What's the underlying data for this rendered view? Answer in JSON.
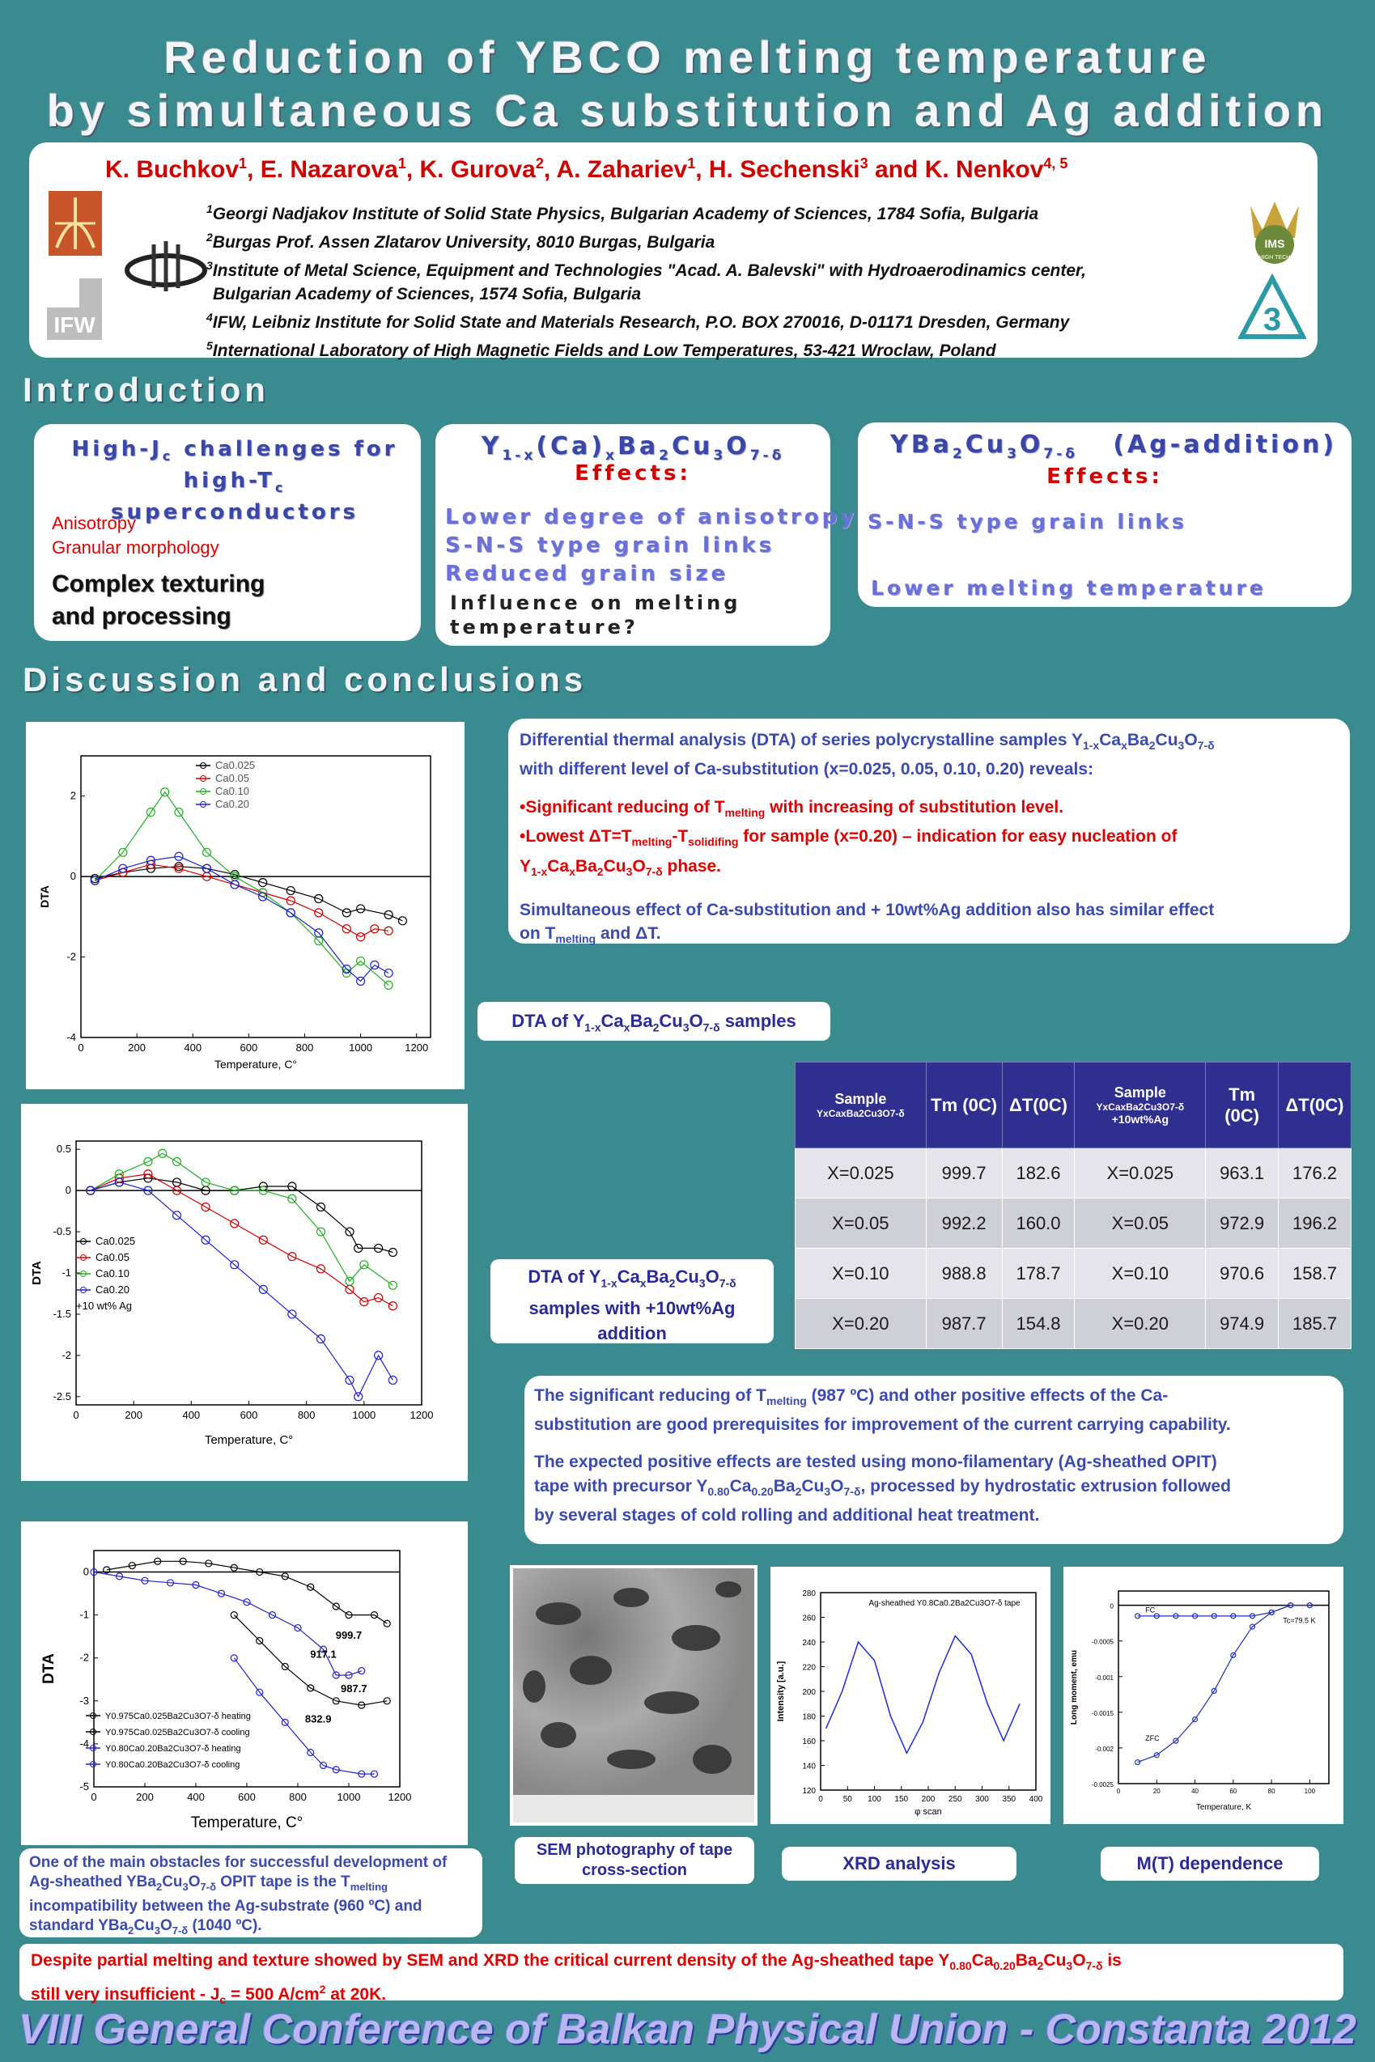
{
  "title": {
    "line1": "Reduction of YBCO melting temperature",
    "line2": "by simultaneous Ca substitution and Ag addition"
  },
  "authors": [
    {
      "name": "K. Buchkov",
      "sup": "1"
    },
    {
      "name": "E. Nazarova",
      "sup": "1"
    },
    {
      "name": "K. Gurova",
      "sup": "2"
    },
    {
      "name": "A. Zahariev",
      "sup": "1"
    },
    {
      "name": "H. Sechenski",
      "sup": "3"
    },
    {
      "name": "K. Nenkov",
      "sup": "4, 5"
    }
  ],
  "authors_and": "and",
  "affiliations": [
    {
      "sup": "1",
      "text": "Georgi Nadjakov Institute of Solid State Physics, Bulgarian Academy of Sciences, 1784 Sofia, Bulgaria"
    },
    {
      "sup": "2",
      "text": "Burgas Prof. Assen Zlatarov University, 8010 Burgas, Bulgaria"
    },
    {
      "sup": "3",
      "text": "Institute of Metal Science, Equipment and Technologies \"Acad. A. Balevski\" with Hydroaerodinamics center,"
    },
    {
      "sup": "",
      "text": "Bulgarian Academy of Sciences, 1574 Sofia, Bulgaria"
    },
    {
      "sup": "4",
      "text": "IFW, Leibniz Institute for Solid State and Materials Research, P.O. BOX 270016, D-01171 Dresden, Germany"
    },
    {
      "sup": "5",
      "text": "International Laboratory of High Magnetic Fields and Low Temperatures, 53-421 Wroclaw, Poland"
    }
  ],
  "logos": {
    "ifw": "IFW",
    "ims": "IMS",
    "ims_sub": "HIGH TECH"
  },
  "sections": {
    "intro": "Introduction",
    "discussion": "Discussion and conclusions"
  },
  "intro_box1": {
    "h1": "High-J",
    "h1_sub": "c",
    "h1_rest": " challenges for",
    "h2": "high-T",
    "h2_sub": "c",
    "h2_rest": " superconductors",
    "red1": "Anisotropy",
    "red2": "Granular morphology",
    "big1": "Complex texturing",
    "big2": "and processing"
  },
  "intro_box2": {
    "h_formula": "Y1-x(Ca)xBa2Cu3O7-δ",
    "h_effects": "Effects:",
    "items": [
      "Lower degree of anisotropy",
      "S-N-S type grain links",
      "Reduced grain size"
    ],
    "dark1": "Influence on melting",
    "dark2": "temperature?"
  },
  "intro_box3": {
    "h_formula": "YBa2Cu3O7-δ",
    "h_add": "(Ag-addition)",
    "h_effects": "Effects:",
    "items": [
      "S-N-S type grain links",
      "Lower melting temperature"
    ]
  },
  "dta_text": {
    "p1a": "Differential thermal analysis (DTA) of series polycrystalline samples Y",
    "p1b": "with different level of Ca-substitution (x=0.025, 0.05, 0.10, 0.20) reveals:",
    "r1": "•Significant reducing of T",
    "r1b": " with increasing of substitution level.",
    "r2": "•Lowest  ΔT=T",
    "r2b": " for sample (x=0.20) – indication for easy nucleation of",
    "r3b": " phase.",
    "p2": "Simultaneous effect of Ca-substitution and + 10wt%Ag addition also has similar effect",
    "p2b": "on T",
    "p2c": " and ΔT.",
    "sub_melting": "melting",
    "sub_solid": "solidifing",
    "formula": "Y1-xCaxBa2Cu3O7-δ"
  },
  "cap1": {
    "pre": "DTA of ",
    "post": " samples"
  },
  "cap2": {
    "l1_pre": "DTA of ",
    "l2": "samples with +10wt%Ag",
    "l3": "addition"
  },
  "table": {
    "headers": [
      "Sample",
      "Tm (0C)",
      "ΔT(0C)",
      "Sample",
      "Tm (0C)",
      "ΔT(0C)"
    ],
    "h1_sub": "YxCaxBa2Cu3O7-δ",
    "h4_sub": "YxCaxBa2Cu3O7-δ",
    "h4_sub2": "+10wt%Ag",
    "rows": [
      [
        "X=0.025",
        "999.7",
        "182.6",
        "X=0.025",
        "963.1",
        "176.2"
      ],
      [
        "X=0.05",
        "992.2",
        "160.0",
        "X=0.05",
        "972.9",
        "196.2"
      ],
      [
        "X=0.10",
        "988.8",
        "178.7",
        "X=0.10",
        "970.6",
        "158.7"
      ],
      [
        "X=0.20",
        "987.7",
        "154.8",
        "X=0.20",
        "974.9",
        "185.7"
      ]
    ]
  },
  "text2": {
    "a": "The significant reducing of T",
    "a_sub": "melting",
    "a2": " (987 ºC) and other positive effects of the Ca-",
    "b": "substitution are good prerequisites for improvement of the current carrying capability.",
    "c": "The expected positive effects are tested using mono-filamentary (Ag-sheathed OPIT)",
    "d": "tape with precursor Y",
    "d2": "Ca",
    "d3": "Ba",
    "d4": "Cu",
    "d5": "O",
    "d6": ", processed by hydrostatic extrusion followed",
    "e": "by several stages of cold rolling and additional heat treatment."
  },
  "obstacles": {
    "l1": "One of the main obstacles for successful development of",
    "l2a": "Ag-sheathed YBa",
    "l2b": " OPIT tape is the T",
    "l3": "incompatibility between the Ag-substrate (960 ºC) and",
    "l4": "standard YBa",
    "l4b": " (1040 ºC)."
  },
  "caps_bottom": {
    "sem1": "SEM photography of tape",
    "sem2": "cross-section",
    "xrd": "XRD analysis",
    "mt": "M(T) dependence"
  },
  "conclusion": {
    "a": "Despite partial melting and texture showed by SEM and XRD the critical current density of the Ag-sheathed tape Y",
    "b": "still very insufficient - J",
    "b2": " = 500 A/cm",
    "b3": " at 20K.",
    "is": " is"
  },
  "footer": "VIII General Conference of Balkan Physical Union - Constanta 2012",
  "chart_data": [
    {
      "type": "line",
      "xlabel": "Temperature, C°",
      "ylabel": "DTA",
      "xlim": [
        0,
        1250
      ],
      "ylim": [
        -4,
        3
      ],
      "x_ticks": [
        0,
        200,
        400,
        600,
        800,
        1000,
        1200
      ],
      "y_ticks": [
        -4,
        -2,
        0,
        2
      ],
      "legend_position": "top-right",
      "series": [
        {
          "name": "Ca0.025",
          "color": "#000000",
          "x": [
            50,
            150,
            250,
            350,
            450,
            550,
            650,
            750,
            850,
            950,
            1000,
            1100,
            1150
          ],
          "y": [
            -0.05,
            0.1,
            0.2,
            0.25,
            0.2,
            0.05,
            -0.15,
            -0.35,
            -0.55,
            -0.9,
            -0.8,
            -0.95,
            -1.1
          ]
        },
        {
          "name": "Ca0.05",
          "color": "#d00000",
          "x": [
            50,
            150,
            250,
            350,
            450,
            550,
            650,
            750,
            850,
            950,
            1000,
            1050,
            1100
          ],
          "y": [
            -0.1,
            0.1,
            0.3,
            0.2,
            0.0,
            -0.2,
            -0.4,
            -0.6,
            -0.9,
            -1.3,
            -1.5,
            -1.3,
            -1.35
          ]
        },
        {
          "name": "Ca0.10",
          "color": "#20b020",
          "x": [
            50,
            150,
            250,
            300,
            350,
            450,
            550,
            650,
            750,
            850,
            950,
            1000,
            1100
          ],
          "y": [
            -0.1,
            0.6,
            1.6,
            2.1,
            1.6,
            0.6,
            0.0,
            -0.4,
            -0.9,
            -1.6,
            -2.4,
            -2.1,
            -2.7
          ]
        },
        {
          "name": "Ca0.20",
          "color": "#2020d0",
          "x": [
            50,
            150,
            250,
            350,
            450,
            550,
            650,
            750,
            850,
            950,
            1000,
            1050,
            1100
          ],
          "y": [
            -0.1,
            0.2,
            0.4,
            0.5,
            0.2,
            -0.2,
            -0.5,
            -0.9,
            -1.4,
            -2.3,
            -2.6,
            -2.2,
            -2.4
          ]
        }
      ]
    },
    {
      "type": "line",
      "xlabel": "Temperature, C°",
      "ylabel": "DTA",
      "xlim": [
        0,
        1200
      ],
      "ylim": [
        -2.6,
        0.6
      ],
      "x_ticks": [
        0,
        200,
        400,
        600,
        800,
        1000,
        1200
      ],
      "y_ticks": [
        -2.5,
        -2.0,
        -1.5,
        -1.0,
        -0.5,
        0.0,
        0.5
      ],
      "legend_position": "middle-left",
      "legend_note": "+10 wt% Ag",
      "series": [
        {
          "name": "Ca0.025",
          "color": "#000000",
          "x": [
            50,
            150,
            250,
            350,
            450,
            550,
            650,
            750,
            850,
            950,
            980,
            1050,
            1100
          ],
          "y": [
            0.0,
            0.1,
            0.15,
            0.1,
            0.0,
            0.0,
            0.05,
            0.05,
            -0.2,
            -0.5,
            -0.7,
            -0.7,
            -0.75
          ]
        },
        {
          "name": "Ca0.05",
          "color": "#d00000",
          "x": [
            50,
            150,
            250,
            350,
            450,
            550,
            650,
            750,
            850,
            950,
            1000,
            1050,
            1100
          ],
          "y": [
            0.0,
            0.15,
            0.2,
            0.0,
            -0.2,
            -0.4,
            -0.6,
            -0.8,
            -0.95,
            -1.2,
            -1.35,
            -1.3,
            -1.4
          ]
        },
        {
          "name": "Ca0.10",
          "color": "#20b020",
          "x": [
            50,
            150,
            250,
            300,
            350,
            450,
            550,
            650,
            750,
            850,
            950,
            1000,
            1100
          ],
          "y": [
            0.0,
            0.2,
            0.35,
            0.45,
            0.35,
            0.1,
            0.0,
            0.0,
            -0.1,
            -0.5,
            -1.1,
            -0.9,
            -1.15
          ]
        },
        {
          "name": "Ca0.20",
          "color": "#2020d0",
          "x": [
            50,
            150,
            250,
            350,
            450,
            550,
            650,
            750,
            850,
            950,
            980,
            1050,
            1100
          ],
          "y": [
            0.0,
            0.1,
            0.0,
            -0.3,
            -0.6,
            -0.9,
            -1.2,
            -1.5,
            -1.8,
            -2.3,
            -2.5,
            -2.0,
            -2.3
          ]
        }
      ]
    },
    {
      "type": "line",
      "xlabel": "Temperature, C°",
      "ylabel": "DTA",
      "xlim": [
        0,
        1200
      ],
      "ylim": [
        -5,
        0.5
      ],
      "x_ticks": [
        0,
        200,
        400,
        600,
        800,
        1000,
        1200
      ],
      "y_ticks": [
        -5,
        -4,
        -3,
        -2,
        -1,
        0
      ],
      "legend_position": "bottom-left",
      "annotations": [
        "999.7",
        "917.1",
        "987.7",
        "832.9"
      ],
      "series": [
        {
          "name": "Y0.975Ca0.025Ba2Cu3O7-δ heating",
          "color": "#000000",
          "x": [
            50,
            150,
            250,
            350,
            450,
            550,
            650,
            750,
            850,
            950,
            1000,
            1100,
            1150
          ],
          "y": [
            0.05,
            0.15,
            0.25,
            0.25,
            0.2,
            0.1,
            0.0,
            -0.1,
            -0.35,
            -0.8,
            -1.0,
            -1.0,
            -1.2
          ]
        },
        {
          "name": "Y0.975Ca0.025Ba2Cu3O7-δ cooling",
          "color": "#000000",
          "x": [
            550,
            650,
            750,
            850,
            950,
            1050,
            1150
          ],
          "y": [
            -1.0,
            -1.6,
            -2.2,
            -2.7,
            -3.0,
            -3.1,
            -3.0
          ]
        },
        {
          "name": "Y0.80Ca0.20Ba2Cu3O7-δ heating",
          "color": "#2020d0",
          "x": [
            0,
            100,
            200,
            300,
            400,
            500,
            600,
            700,
            800,
            900,
            950,
            1000,
            1050
          ],
          "y": [
            0.0,
            -0.1,
            -0.2,
            -0.25,
            -0.3,
            -0.5,
            -0.7,
            -1.0,
            -1.3,
            -1.8,
            -2.4,
            -2.4,
            -2.3
          ]
        },
        {
          "name": "Y0.80Ca0.20Ba2Cu3O7-δ cooling",
          "color": "#2020d0",
          "x": [
            550,
            650,
            750,
            850,
            900,
            950,
            1050,
            1100
          ],
          "y": [
            -2.0,
            -2.8,
            -3.5,
            -4.2,
            -4.5,
            -4.6,
            -4.7,
            -4.7
          ]
        }
      ]
    },
    {
      "type": "line",
      "title": "Ag-sheathed Y0.8Ca0.2Ba2Cu3O7-δ tape",
      "xlabel": "φ scan",
      "ylabel": "Intensity [a.u.]",
      "xlim": [
        0,
        400
      ],
      "ylim": [
        120,
        280
      ],
      "x_ticks": [
        0,
        50,
        100,
        150,
        200,
        250,
        300,
        350,
        400
      ],
      "y_ticks": [
        120,
        140,
        160,
        180,
        200,
        220,
        240,
        260,
        280
      ],
      "series": [
        {
          "name": "",
          "color": "#1a2be0",
          "x": [
            10,
            40,
            70,
            100,
            130,
            160,
            190,
            220,
            250,
            280,
            310,
            340,
            370
          ],
          "y": [
            170,
            200,
            240,
            225,
            180,
            150,
            175,
            215,
            245,
            230,
            190,
            160,
            190
          ]
        }
      ]
    },
    {
      "type": "scatter",
      "xlabel": "Temperature, K",
      "ylabel": "Long moment, emu",
      "xlim": [
        0,
        110
      ],
      "ylim": [
        -0.0025,
        0.0002
      ],
      "x_ticks": [
        0,
        20,
        40,
        60,
        80,
        100
      ],
      "y_ticks": [
        -0.0025,
        -0.002,
        -0.0015,
        -0.001,
        -0.0005,
        0.0
      ],
      "annotations": [
        "FC",
        "ZFC",
        "Tc=79.5 K"
      ],
      "series": [
        {
          "name": "FC",
          "color": "#2030c0",
          "x": [
            10,
            20,
            30,
            40,
            50,
            60,
            70,
            80,
            90,
            100
          ],
          "y": [
            -0.00015,
            -0.00015,
            -0.00015,
            -0.00015,
            -0.00015,
            -0.00015,
            -0.00015,
            -0.0001,
            0.0,
            0.0
          ]
        },
        {
          "name": "ZFC",
          "color": "#2030c0",
          "x": [
            10,
            20,
            30,
            40,
            50,
            60,
            70,
            80,
            90,
            100
          ],
          "y": [
            -0.0022,
            -0.0021,
            -0.0019,
            -0.0016,
            -0.0012,
            -0.0007,
            -0.0003,
            -0.0001,
            0.0,
            0.0
          ]
        }
      ]
    }
  ]
}
